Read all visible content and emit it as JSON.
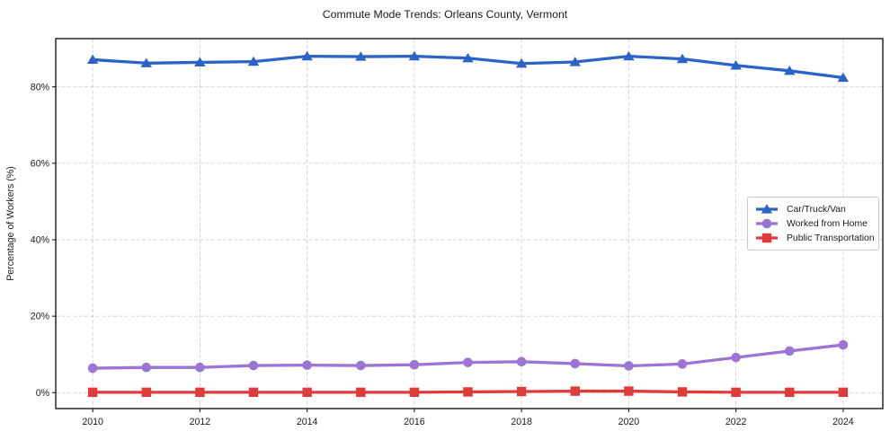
{
  "chart_data": {
    "type": "line",
    "title": "Commute Mode Trends: Orleans County, Vermont",
    "xlabel": "",
    "ylabel": "Percentage of Workers (%)",
    "x": [
      2010,
      2011,
      2012,
      2013,
      2014,
      2015,
      2016,
      2017,
      2018,
      2019,
      2020,
      2021,
      2022,
      2023,
      2024
    ],
    "series": [
      {
        "name": "Car/Truck/Van",
        "color": "#2b63c6",
        "marker": "triangle",
        "values": [
          87.1,
          86.2,
          86.4,
          86.6,
          88.0,
          87.9,
          88.0,
          87.5,
          86.1,
          86.5,
          88.0,
          87.3,
          85.6,
          84.2,
          82.4
        ]
      },
      {
        "name": "Worked from Home",
        "color": "#9b74d6",
        "marker": "circle",
        "values": [
          6.4,
          6.6,
          6.6,
          7.1,
          7.2,
          7.1,
          7.3,
          7.9,
          8.1,
          7.6,
          7.0,
          7.5,
          9.2,
          10.9,
          12.5
        ]
      },
      {
        "name": "Public Transportation",
        "color": "#e03b3c",
        "marker": "square",
        "values": [
          0.1,
          0.1,
          0.1,
          0.1,
          0.1,
          0.1,
          0.1,
          0.2,
          0.3,
          0.4,
          0.4,
          0.2,
          0.1,
          0.1,
          0.1
        ]
      }
    ],
    "xticks": [
      2010,
      2012,
      2014,
      2016,
      2018,
      2020,
      2022,
      2024
    ],
    "yticks": [
      0,
      20,
      40,
      60,
      80
    ],
    "ytick_suffix": "%",
    "xlim": [
      2009.31,
      2024.74
    ],
    "ylim": [
      -4.16,
      92.61
    ],
    "grid": true,
    "legend_position": "center right"
  },
  "style": {
    "grid_color": "#d0d0d0",
    "spine_color": "#1a1a1a",
    "text_color": "#1a1a1a",
    "background": "#ffffff"
  }
}
